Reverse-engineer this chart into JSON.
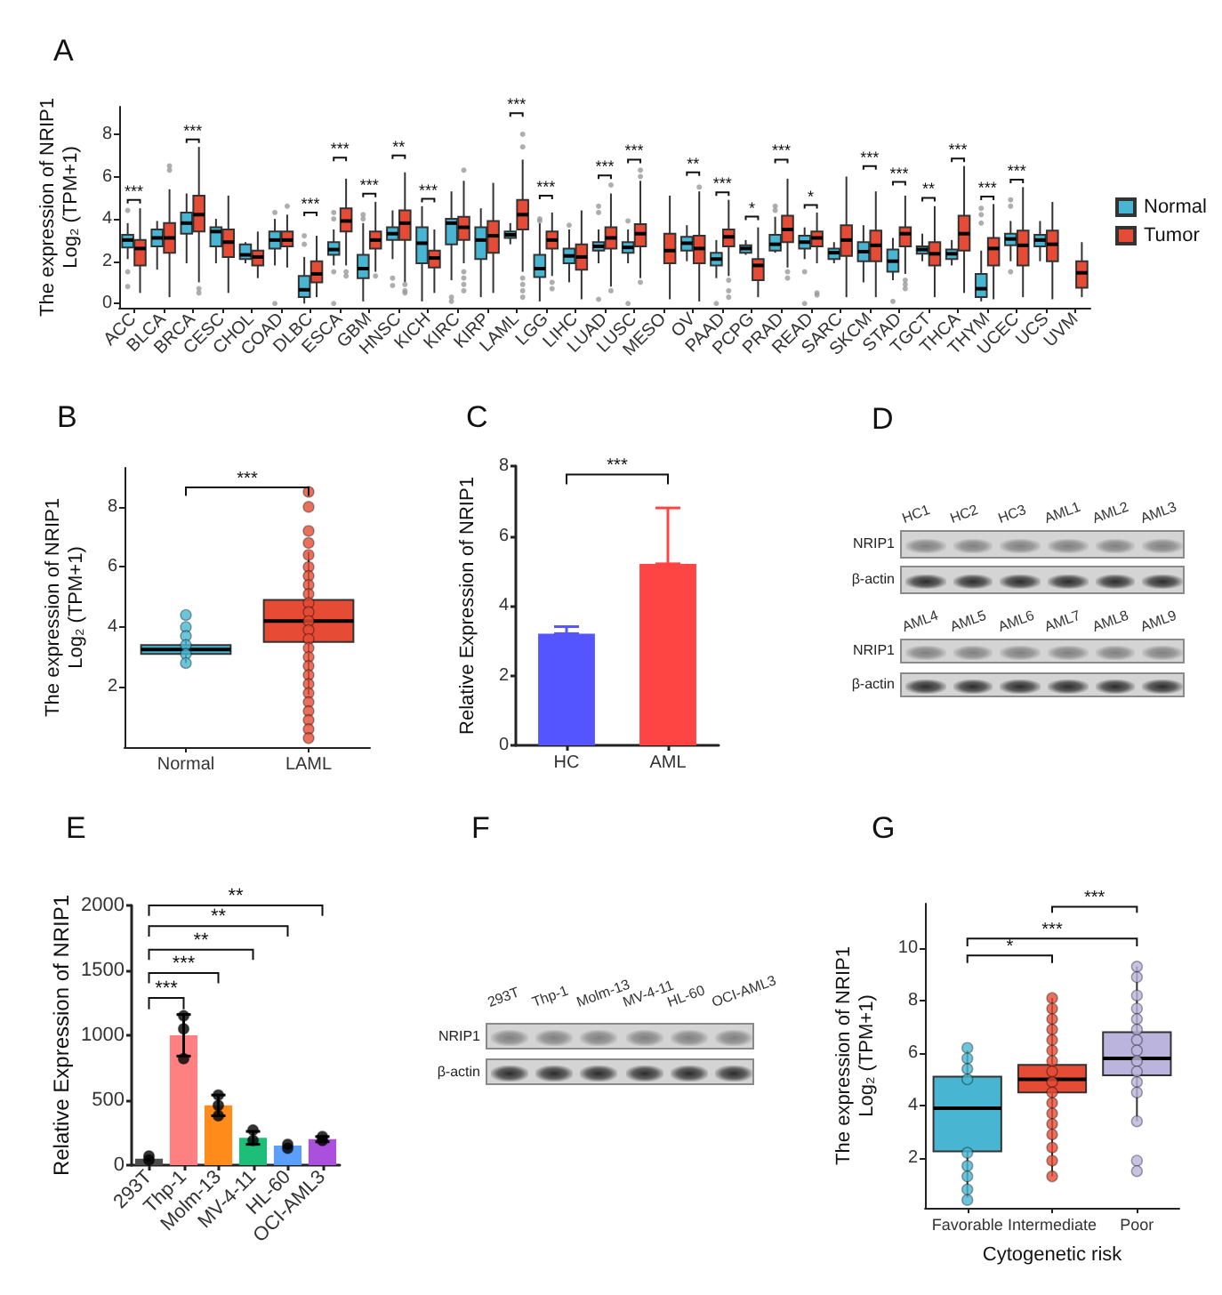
{
  "chart_data": [
    {
      "type": "box",
      "title": "A",
      "ylabel": "The expression of NRIP1\nLog₂ (TPM+1)",
      "legend": "right",
      "categories": [
        "ACC",
        "BLCA",
        "BRCA",
        "CESC",
        "CHOL",
        "COAD",
        "DLBC",
        "ESCA",
        "GBM",
        "HNSC",
        "KICH",
        "KIRC",
        "KIRP",
        "LAML",
        "LGG",
        "LIHC",
        "LUAD",
        "LUSC",
        "MESO",
        "OV",
        "PAAD",
        "PCPG",
        "PRAD",
        "READ",
        "SARC",
        "SKCM",
        "STAD",
        "TGCT",
        "THCA",
        "THYM",
        "UCEC",
        "UCS",
        "UVM"
      ],
      "ylim": [
        -0.2,
        9.3
      ],
      "yticks": [
        0,
        2,
        4,
        6,
        8
      ],
      "series": [
        {
          "name": "Normal",
          "color": "#48b6d2",
          "boxes": [
            {
              "low": 2.1,
              "q1": 2.65,
              "median": 3.0,
              "q3": 3.25,
              "high": 3.8,
              "outliers": [
                4.4,
                1.5,
                0.8
              ]
            },
            {
              "low": 1.6,
              "q1": 2.7,
              "median": 3.1,
              "q3": 3.5,
              "high": 3.9
            },
            {
              "low": 1.9,
              "q1": 3.3,
              "median": 3.8,
              "q3": 4.3,
              "high": 5.2
            },
            {
              "low": 1.9,
              "q1": 2.7,
              "median": 3.4,
              "q3": 3.6,
              "high": 4.0
            },
            {
              "low": 1.9,
              "q1": 2.1,
              "median": 2.3,
              "q3": 2.8,
              "high": 2.9
            },
            {
              "low": 1.8,
              "q1": 2.6,
              "median": 3.0,
              "q3": 3.4,
              "high": 4.0,
              "outliers": [
                4.3,
                0.0
              ]
            },
            {
              "low": 0.0,
              "q1": 0.3,
              "median": 0.65,
              "q3": 1.3,
              "high": 2.2,
              "outliers": [
                2.8,
                3.2
              ]
            },
            {
              "low": 1.8,
              "q1": 2.3,
              "median": 2.55,
              "q3": 2.9,
              "high": 3.5,
              "outliers": [
                4.3,
                4.0,
                1.5,
                0.0
              ]
            },
            {
              "low": 0.1,
              "q1": 1.2,
              "median": 1.65,
              "q3": 2.3,
              "high": 3.8,
              "outliers": [
                4.2,
                4.0
              ]
            },
            {
              "low": 2.1,
              "q1": 3.0,
              "median": 3.3,
              "q3": 3.6,
              "high": 4.4,
              "outliers": [
                1.2,
                0.85
              ]
            },
            {
              "low": 0.1,
              "q1": 1.9,
              "median": 2.85,
              "q3": 3.6,
              "high": 4.6
            },
            {
              "low": 1.1,
              "q1": 2.8,
              "median": 3.8,
              "q3": 4.0,
              "high": 5.3,
              "outliers": [
                0.3,
                0.1
              ]
            },
            {
              "low": 0.3,
              "q1": 2.1,
              "median": 3.0,
              "q3": 3.6,
              "high": 4.5
            },
            {
              "low": 2.8,
              "q1": 3.1,
              "median": 3.25,
              "q3": 3.4,
              "high": 3.8
            },
            {
              "low": 0.1,
              "q1": 1.25,
              "median": 1.65,
              "q3": 2.3,
              "high": 3.8,
              "outliers": [
                4.0,
                3.9
              ]
            },
            {
              "low": 1.0,
              "q1": 1.9,
              "median": 2.25,
              "q3": 2.6,
              "high": 3.5,
              "outliers": [
                3.7
              ]
            },
            {
              "low": 1.9,
              "q1": 2.5,
              "median": 2.7,
              "q3": 2.9,
              "high": 3.5,
              "outliers": [
                4.6,
                4.3,
                0.2
              ]
            },
            {
              "low": 1.9,
              "q1": 2.4,
              "median": 2.65,
              "q3": 2.9,
              "high": 3.5,
              "outliers": [
                3.9,
                0.0
              ]
            },
            null,
            {
              "low": 2.0,
              "q1": 2.5,
              "median": 2.85,
              "q3": 3.15,
              "high": 3.7
            },
            {
              "low": 1.2,
              "q1": 1.8,
              "median": 2.1,
              "q3": 2.4,
              "high": 3.0,
              "outliers": [
                0.0
              ]
            },
            {
              "low": 2.3,
              "q1": 2.4,
              "median": 2.6,
              "q3": 2.75,
              "high": 3.0
            },
            {
              "low": 2.4,
              "q1": 2.5,
              "median": 2.8,
              "q3": 3.25,
              "high": 4.1,
              "outliers": [
                4.6,
                4.4
              ]
            },
            {
              "low": 2.1,
              "q1": 2.6,
              "median": 2.9,
              "q3": 3.2,
              "high": 3.6,
              "outliers": [
                1.5,
                0.0
              ]
            },
            {
              "low": 1.9,
              "q1": 2.1,
              "median": 2.4,
              "q3": 2.6,
              "high": 2.9
            },
            {
              "low": 1.0,
              "q1": 2.0,
              "median": 2.45,
              "q3": 2.9,
              "high": 3.7
            },
            {
              "low": 1.1,
              "q1": 1.5,
              "median": 2.0,
              "q3": 2.55,
              "high": 3.1,
              "outliers": [
                0.1
              ]
            },
            {
              "low": 2.0,
              "q1": 2.35,
              "median": 2.55,
              "q3": 2.7,
              "high": 3.3
            },
            {
              "low": 1.8,
              "q1": 2.1,
              "median": 2.35,
              "q3": 2.55,
              "high": 3.0
            },
            {
              "low": 0.1,
              "q1": 0.3,
              "median": 0.7,
              "q3": 1.4,
              "high": 2.5,
              "outliers": [
                4.5,
                4.2,
                3.8
              ]
            },
            {
              "low": 2.0,
              "q1": 2.75,
              "median": 3.05,
              "q3": 3.3,
              "high": 3.9,
              "outliers": [
                4.9,
                4.6,
                1.5
              ]
            },
            {
              "low": 2.0,
              "q1": 2.7,
              "median": 3.0,
              "q3": 3.25,
              "high": 3.9
            },
            null
          ]
        },
        {
          "name": "Tumor",
          "color": "#e54b35",
          "boxes": [
            {
              "low": 0.5,
              "q1": 1.8,
              "median": 2.6,
              "q3": 3.0,
              "high": 4.5
            },
            {
              "low": 0.3,
              "q1": 2.4,
              "median": 3.1,
              "q3": 3.8,
              "high": 5.4,
              "outliers": [
                6.5,
                6.3
              ]
            },
            {
              "low": 1.0,
              "q1": 3.4,
              "median": 4.2,
              "q3": 5.1,
              "high": 7.4,
              "outliers": [
                0.7,
                0.5
              ]
            },
            {
              "low": 0.5,
              "q1": 2.2,
              "median": 2.9,
              "q3": 3.5,
              "high": 5.1
            },
            {
              "low": 1.2,
              "q1": 1.8,
              "median": 2.2,
              "q3": 2.5,
              "high": 3.4
            },
            {
              "low": 1.7,
              "q1": 2.7,
              "median": 3.0,
              "q3": 3.4,
              "high": 4.2,
              "outliers": [
                4.6
              ]
            },
            {
              "low": 0.3,
              "q1": 1.0,
              "median": 1.4,
              "q3": 2.0,
              "high": 3.2
            },
            {
              "low": 1.8,
              "q1": 3.4,
              "median": 3.9,
              "q3": 4.5,
              "high": 5.9,
              "outliers": [
                1.5,
                1.3
              ]
            },
            {
              "low": 1.5,
              "q1": 2.6,
              "median": 3.0,
              "q3": 3.4,
              "high": 4.8,
              "outliers": [
                1.3
              ]
            },
            {
              "low": 1.0,
              "q1": 3.0,
              "median": 3.8,
              "q3": 4.4,
              "high": 6.2,
              "outliers": [
                0.9,
                0.6,
                0.5
              ]
            },
            {
              "low": 0.5,
              "q1": 1.7,
              "median": 2.15,
              "q3": 2.5,
              "high": 3.5
            },
            {
              "low": 1.9,
              "q1": 3.0,
              "median": 3.6,
              "q3": 4.1,
              "high": 5.8,
              "outliers": [
                6.3,
                1.5,
                1.2,
                0.9,
                0.6
              ]
            },
            {
              "low": 0.5,
              "q1": 2.4,
              "median": 3.2,
              "q3": 3.9,
              "high": 5.7
            },
            {
              "low": 1.5,
              "q1": 3.5,
              "median": 4.2,
              "q3": 4.9,
              "high": 6.8,
              "outliers": [
                8.0,
                7.4,
                1.2,
                0.9,
                0.6,
                0.3
              ]
            },
            {
              "low": 1.3,
              "q1": 2.6,
              "median": 3.0,
              "q3": 3.4,
              "high": 4.3,
              "outliers": [
                1.0,
                0.7
              ]
            },
            {
              "low": 0.2,
              "q1": 1.6,
              "median": 2.2,
              "q3": 2.8,
              "high": 4.4
            },
            {
              "low": 0.8,
              "q1": 2.6,
              "median": 3.1,
              "q3": 3.6,
              "high": 5.2,
              "outliers": [
                5.6,
                0.6
              ]
            },
            {
              "low": 1.2,
              "q1": 2.7,
              "median": 3.3,
              "q3": 3.75,
              "high": 5.8,
              "outliers": [
                6.3,
                6.0,
                1.0
              ]
            },
            {
              "low": 0.2,
              "q1": 1.9,
              "median": 2.5,
              "q3": 3.3,
              "high": 5.1
            },
            {
              "low": 0.1,
              "q1": 1.9,
              "median": 2.6,
              "q3": 3.2,
              "high": 5.3,
              "outliers": [
                5.5
              ]
            },
            {
              "low": 1.3,
              "q1": 2.7,
              "median": 3.15,
              "q3": 3.5,
              "high": 4.9,
              "outliers": [
                1.1,
                0.6,
                0.3
              ]
            },
            {
              "low": 0.3,
              "q1": 1.1,
              "median": 1.8,
              "q3": 2.1,
              "high": 3.6
            },
            {
              "low": 1.7,
              "q1": 2.9,
              "median": 3.5,
              "q3": 4.15,
              "high": 5.9,
              "outliers": [
                1.5,
                1.2
              ]
            },
            {
              "low": 1.9,
              "q1": 2.7,
              "median": 3.1,
              "q3": 3.4,
              "high": 4.3,
              "outliers": [
                0.5,
                0.4
              ]
            },
            {
              "low": 0.3,
              "q1": 2.25,
              "median": 3.0,
              "q3": 3.7,
              "high": 6.0
            },
            {
              "low": 0.3,
              "q1": 2.0,
              "median": 2.75,
              "q3": 3.45,
              "high": 5.3
            },
            {
              "low": 1.4,
              "q1": 2.7,
              "median": 3.3,
              "q3": 3.6,
              "high": 5.1,
              "outliers": [
                1.1,
                0.9,
                0.7
              ]
            },
            {
              "low": 0.3,
              "q1": 1.8,
              "median": 2.35,
              "q3": 2.9,
              "high": 4.6
            },
            {
              "low": 0.5,
              "q1": 2.5,
              "median": 3.3,
              "q3": 4.15,
              "high": 6.5
            },
            {
              "low": 0.2,
              "q1": 1.8,
              "median": 2.6,
              "q3": 3.1,
              "high": 4.7
            },
            {
              "low": 0.3,
              "q1": 1.8,
              "median": 2.75,
              "q3": 3.45,
              "high": 5.5
            },
            {
              "low": 0.2,
              "q1": 2.0,
              "median": 2.8,
              "q3": 3.45,
              "high": 4.8
            },
            {
              "low": 0.3,
              "q1": 0.75,
              "median": 1.45,
              "q3": 2.0,
              "high": 2.9
            }
          ]
        }
      ],
      "annotations": [
        "***",
        "***",
        "***",
        "***",
        "***",
        "**",
        "***",
        "***",
        "***",
        "***",
        "***",
        "**",
        "***",
        "*",
        "***",
        "*",
        "***",
        "***",
        "**",
        "***",
        "***",
        "***"
      ]
    },
    {
      "type": "box",
      "title": "B",
      "ylabel": "The expression of NRIP1\nLog₂ (TPM+1)",
      "categories": [
        "Normal",
        "LAML"
      ],
      "ylim": [
        0,
        9.3
      ],
      "yticks": [
        2,
        4,
        6,
        8
      ],
      "series": [
        {
          "type": "box",
          "colors": [
            "#48b6d2",
            "#e54b35"
          ],
          "boxes": [
            {
              "low": 2.8,
              "q1": 3.1,
              "median": 3.25,
              "q3": 3.4,
              "high": 3.6
            },
            {
              "low": 1.75,
              "q1": 3.5,
              "median": 4.2,
              "q3": 4.9,
              "high": 6.5
            }
          ]
        },
        {
          "type": "scatter",
          "marker": "circle",
          "color": "#48b6d2",
          "x": [
            "Normal",
            "Normal",
            "Normal",
            "Normal",
            "Normal",
            "Normal"
          ],
          "values": [
            4.4,
            4.0,
            3.7,
            3.4,
            3.1,
            2.8
          ]
        },
        {
          "type": "scatter",
          "marker": "circle",
          "color": "#e54b35",
          "x": [
            "LAML",
            "LAML",
            "LAML",
            "LAML",
            "LAML",
            "LAML",
            "LAML",
            "LAML",
            "LAML",
            "LAML",
            "LAML",
            "LAML",
            "LAML",
            "LAML",
            "LAML",
            "LAML",
            "LAML",
            "LAML",
            "LAML",
            "LAML",
            "LAML",
            "LAML",
            "LAML",
            "LAML",
            "LAML"
          ],
          "values": [
            8.5,
            8.0,
            7.2,
            6.8,
            6.4,
            6.0,
            5.7,
            5.4,
            5.1,
            4.8,
            4.5,
            4.2,
            3.9,
            3.6,
            3.3,
            3.0,
            2.7,
            2.4,
            2.1,
            1.8,
            1.5,
            1.2,
            0.9,
            0.6,
            0.3
          ]
        }
      ],
      "annotations": [
        "***"
      ]
    },
    {
      "type": "bar",
      "title": "C",
      "ylabel": "Relative Expression of NRIP1",
      "categories": [
        "HC",
        "AML"
      ],
      "ylim": [
        0,
        8
      ],
      "yticks": [
        0,
        2,
        4,
        6,
        8
      ],
      "series": [
        {
          "values": [
            3.2,
            5.2
          ],
          "colors": [
            "#5555ff",
            "#ff4444"
          ],
          "errors": [
            [
              3.2,
              3.4
            ],
            [
              5.2,
              6.8
            ]
          ]
        }
      ],
      "annotations": [
        "***"
      ]
    },
    {
      "type": "other",
      "title": "D",
      "categories": [
        "HC1",
        "HC2",
        "HC3",
        "AML1",
        "AML2",
        "AML3"
      ],
      "y_categories": [
        "NRIP1",
        "β-actin"
      ]
    },
    {
      "type": "other",
      "categories": [
        "AML4",
        "AML5",
        "AML6",
        "AML7",
        "AML8",
        "AML9"
      ],
      "y_categories": [
        "NRIP1",
        "β-actin"
      ]
    },
    {
      "type": "bar",
      "title": "E",
      "ylabel": "Relative Expression of NRIP1",
      "categories": [
        "293T",
        "Thp-1",
        "Molm-13",
        "MV-4-11",
        "HL-60",
        "OCI-AML3"
      ],
      "ylim": [
        0,
        2000
      ],
      "yticks": [
        0,
        500,
        1000,
        1500,
        2000
      ],
      "series": [
        {
          "type": "bar",
          "values": [
            50,
            1000,
            460,
            210,
            150,
            200
          ],
          "colors": [
            "#4d4d4d",
            "#ff8080",
            "#ff8c1a",
            "#1ebe78",
            "#5aa0fa",
            "#aa50dc"
          ],
          "errors": [
            null,
            160,
            80,
            50,
            null,
            20
          ]
        },
        {
          "type": "scatter",
          "marker": "circle",
          "color": "#000000",
          "x": [
            "293T",
            "293T",
            "Thp-1",
            "Thp-1",
            "Thp-1",
            "Molm-13",
            "Molm-13",
            "Molm-13",
            "MV-4-11",
            "MV-4-11",
            "HL-60",
            "HL-60",
            "OCI-AML3",
            "OCI-AML3"
          ],
          "values": [
            70,
            40,
            1150,
            1050,
            820,
            540,
            460,
            380,
            270,
            190,
            160,
            130,
            220,
            190
          ]
        }
      ],
      "annotations": [
        "***",
        "***",
        "**",
        "**",
        "**"
      ]
    },
    {
      "type": "other",
      "title": "F",
      "categories": [
        "293T",
        "Thp-1",
        "Molm-13",
        "MV-4-11",
        "HL-60",
        "OCI-AML3"
      ],
      "y_categories": [
        "NRIP1",
        "β-actin"
      ]
    },
    {
      "type": "box",
      "title": "G",
      "ylabel": "The expression of NRIP1\nLog₂ (TPM+1)",
      "xlabel": "Cytogenetic risk",
      "categories": [
        "Favorable",
        "Intermediate",
        "Poor"
      ],
      "ylim": [
        0.1,
        11.7
      ],
      "yticks": [
        2,
        4,
        6,
        8,
        10
      ],
      "series": [
        {
          "type": "box",
          "colors": [
            "#48b6d2",
            "#e54b35",
            "#bbb4dc"
          ],
          "boxes": [
            {
              "low": 0.5,
              "q1": 2.25,
              "median": 3.9,
              "q3": 5.1,
              "high": 6.1
            },
            {
              "low": 1.3,
              "q1": 4.5,
              "median": 5.0,
              "q3": 5.55,
              "high": 8.1
            },
            {
              "low": 3.4,
              "q1": 5.15,
              "median": 5.8,
              "q3": 6.8,
              "high": 9.3
            }
          ]
        },
        {
          "type": "scatter",
          "marker": "circle",
          "color": "#48b6d2",
          "x": [
            "Favorable",
            "Favorable",
            "Favorable",
            "Favorable",
            "Favorable",
            "Favorable",
            "Favorable",
            "Favorable",
            "Favorable"
          ],
          "values": [
            6.2,
            5.8,
            5.4,
            5.0,
            2.2,
            1.7,
            1.3,
            0.8,
            0.4
          ]
        },
        {
          "type": "scatter",
          "marker": "circle",
          "color": "#e54b35",
          "x": [
            "Intermediate",
            "Intermediate",
            "Intermediate",
            "Intermediate",
            "Intermediate",
            "Intermediate",
            "Intermediate",
            "Intermediate",
            "Intermediate",
            "Intermediate",
            "Intermediate",
            "Intermediate",
            "Intermediate",
            "Intermediate",
            "Intermediate",
            "Intermediate",
            "Intermediate"
          ],
          "values": [
            8.1,
            7.7,
            7.3,
            6.9,
            6.5,
            6.1,
            5.7,
            5.3,
            4.9,
            4.5,
            4.1,
            3.7,
            3.3,
            2.9,
            2.4,
            1.9,
            1.3
          ]
        },
        {
          "type": "scatter",
          "marker": "circle",
          "color": "#bbb4dc",
          "x": [
            "Poor",
            "Poor",
            "Poor",
            "Poor",
            "Poor",
            "Poor",
            "Poor",
            "Poor",
            "Poor",
            "Poor",
            "Poor",
            "Poor",
            "Poor",
            "Poor",
            "Poor"
          ],
          "values": [
            9.3,
            8.9,
            8.2,
            7.7,
            7.3,
            6.9,
            6.5,
            6.1,
            5.7,
            5.3,
            4.9,
            4.5,
            3.4,
            1.9,
            1.5
          ]
        }
      ],
      "annotations": [
        "*",
        "***",
        "***"
      ]
    }
  ]
}
